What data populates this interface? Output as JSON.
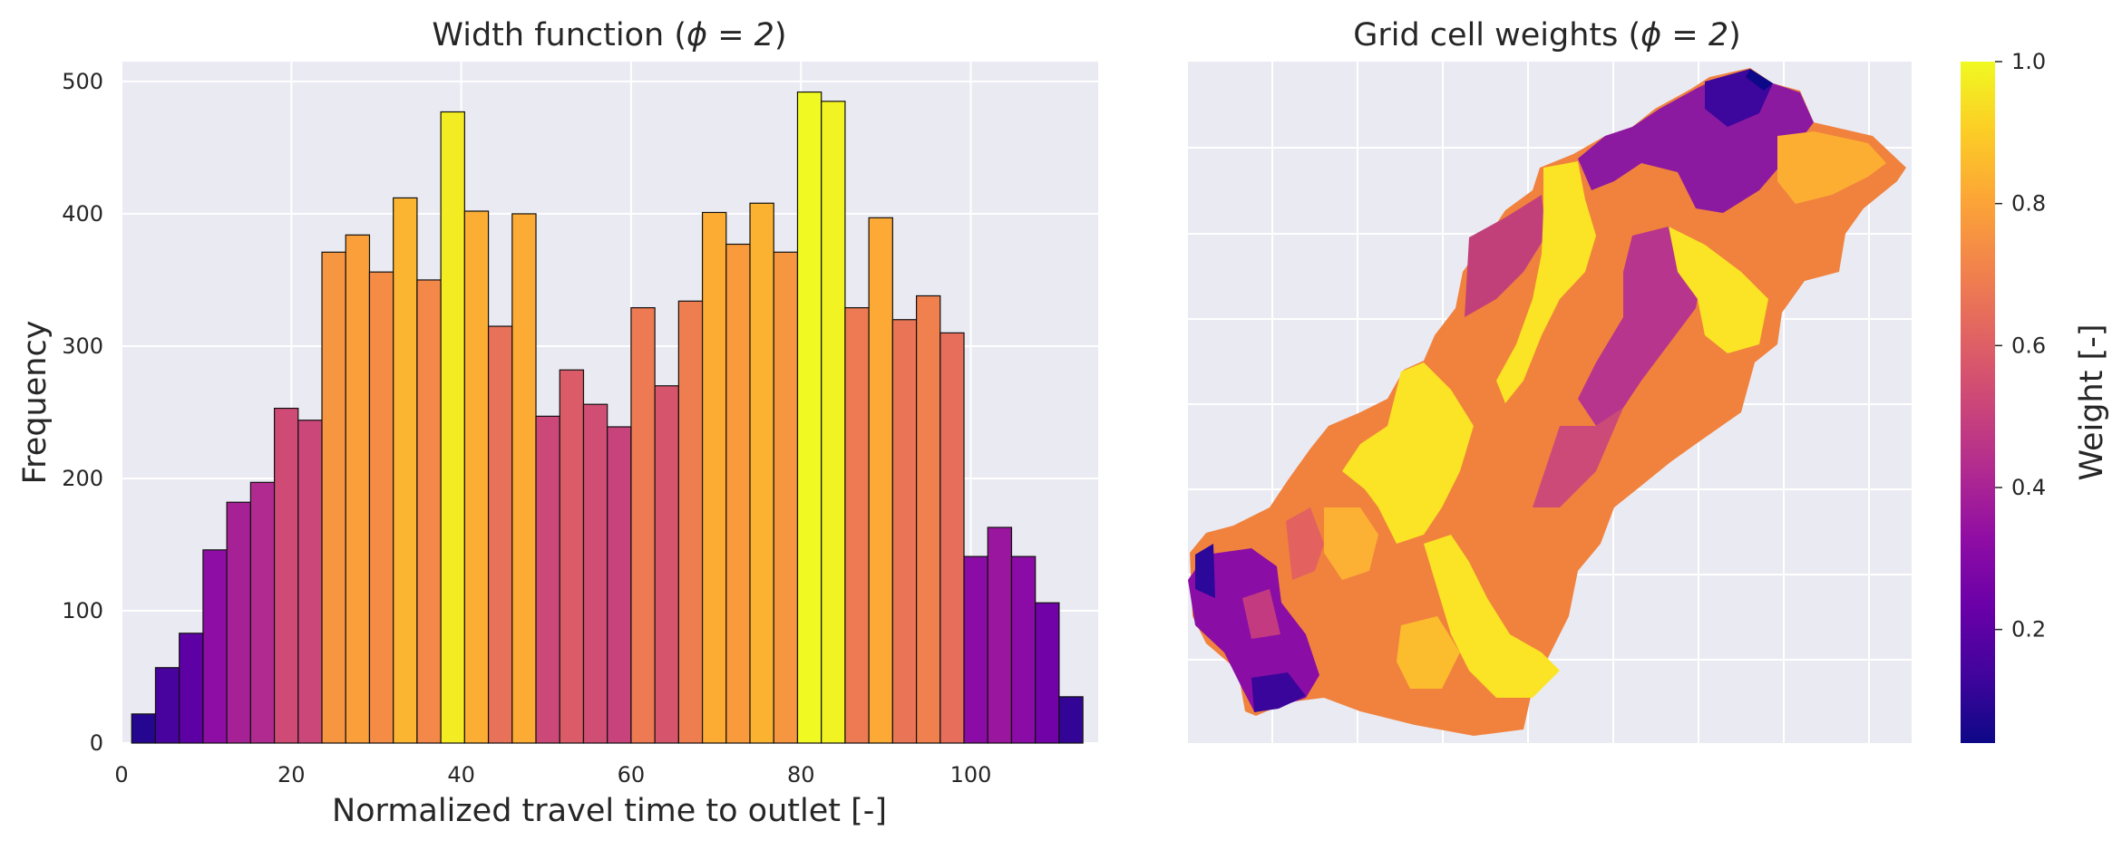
{
  "panels": {
    "left_title_main": "Width function (",
    "left_title_math": "ϕ = 2",
    "left_title_end": ")",
    "right_title_main": "Grid cell weights (",
    "right_title_math": "ϕ = 2",
    "right_title_end": ")",
    "colorbar_label": "Weight [-]",
    "colorbar_ticks": [
      "0.2",
      "0.4",
      "0.6",
      "0.8",
      "1.0"
    ],
    "colorbar_tick_values": [
      0.2,
      0.4,
      0.6,
      0.8,
      1.0
    ]
  },
  "chart_data": [
    {
      "type": "bar",
      "title": "Width function (ϕ = 2)",
      "xlabel": "Normalized travel time to outlet [-]",
      "ylabel": "Frequency",
      "xlim": [
        0,
        115
      ],
      "ylim": [
        0,
        515
      ],
      "xticks": [
        "0",
        "20",
        "40",
        "60",
        "80",
        "100"
      ],
      "xtick_values": [
        0,
        20,
        40,
        60,
        80,
        100
      ],
      "yticks": [
        "0",
        "100",
        "200",
        "300",
        "400",
        "500"
      ],
      "ytick_values": [
        0,
        100,
        200,
        300,
        400,
        500
      ],
      "grid": true,
      "colormap": "plasma",
      "bin_edges_start": 1.2,
      "bin_width": 2.8,
      "values": [
        22,
        57,
        83,
        146,
        182,
        197,
        253,
        244,
        371,
        384,
        356,
        412,
        350,
        477,
        402,
        315,
        400,
        247,
        282,
        256,
        239,
        329,
        270,
        334,
        401,
        377,
        408,
        371,
        492,
        485,
        329,
        397,
        320,
        338,
        310,
        141,
        163,
        141,
        106,
        35
      ]
    },
    {
      "type": "heatmap",
      "title": "Grid cell weights (ϕ = 2)",
      "colorbar_label": "Weight [-]",
      "colormap": "plasma",
      "clim": [
        0.04,
        1.0
      ],
      "grid": true
    }
  ]
}
